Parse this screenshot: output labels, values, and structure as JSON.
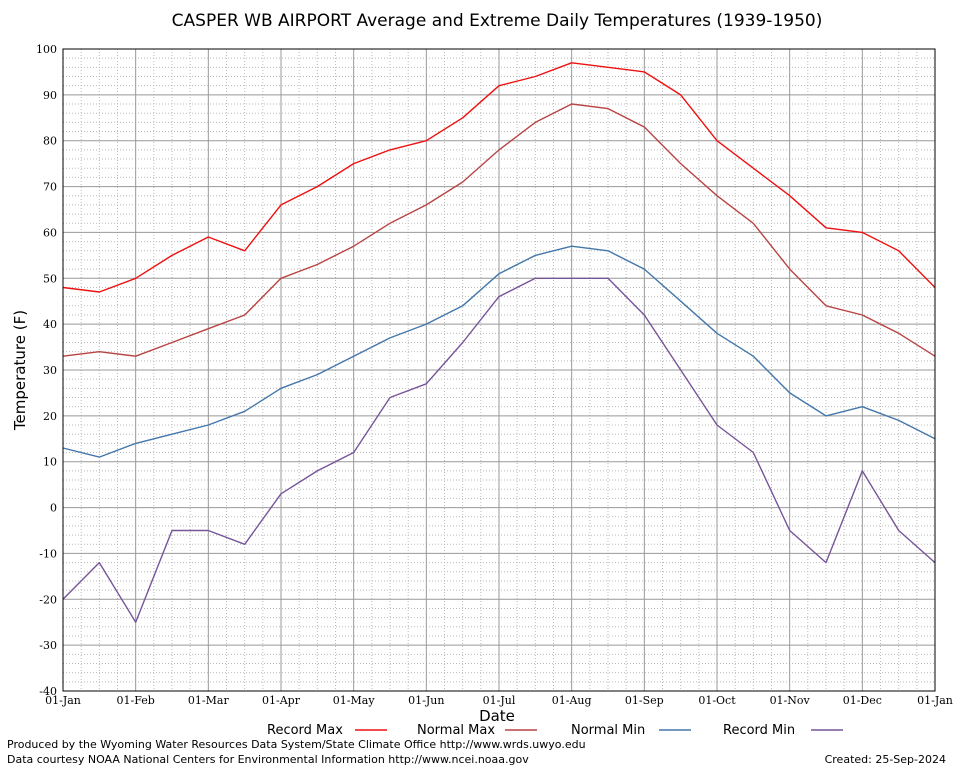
{
  "chart_data": {
    "type": "line",
    "title": "CASPER WB AIRPORT Average and Extreme Daily Temperatures (1939-1950)",
    "xlabel": "Date",
    "ylabel": "Temperature (F)",
    "ylim": [
      -40,
      100
    ],
    "yticks": [
      100,
      90,
      80,
      70,
      60,
      50,
      40,
      30,
      20,
      10,
      0,
      -10,
      -20,
      -30,
      -40
    ],
    "xlim": [
      "01-Jan",
      "01-Jan"
    ],
    "xticks": [
      "01-Jan",
      "01-Feb",
      "01-Mar",
      "01-Apr",
      "01-May",
      "01-Jun",
      "01-Jul",
      "01-Aug",
      "01-Sep",
      "01-Oct",
      "01-Nov",
      "01-Dec",
      "01-Jan"
    ],
    "grid": true,
    "legend_position": "bottom",
    "x": [
      "01-Jan",
      "15-Jan",
      "01-Feb",
      "15-Feb",
      "01-Mar",
      "15-Mar",
      "01-Apr",
      "15-Apr",
      "01-May",
      "15-May",
      "01-Jun",
      "15-Jun",
      "01-Jul",
      "15-Jul",
      "01-Aug",
      "15-Aug",
      "01-Sep",
      "15-Sep",
      "01-Oct",
      "15-Oct",
      "01-Nov",
      "15-Nov",
      "01-Dec",
      "15-Dec",
      "31-Dec"
    ],
    "series": [
      {
        "name": "Record Max",
        "color": "#ee1111",
        "values": [
          48,
          47,
          50,
          55,
          59,
          56,
          66,
          70,
          75,
          78,
          80,
          85,
          92,
          94,
          97,
          96,
          95,
          90,
          80,
          74,
          68,
          61,
          60,
          56,
          48
        ]
      },
      {
        "name": "Normal Max",
        "color": "#b84444",
        "values": [
          33,
          34,
          33,
          36,
          39,
          42,
          50,
          53,
          57,
          62,
          66,
          71,
          78,
          84,
          88,
          87,
          83,
          75,
          68,
          62,
          52,
          44,
          42,
          38,
          33
        ]
      },
      {
        "name": "Normal Min",
        "color": "#4477aa",
        "values": [
          13,
          11,
          14,
          16,
          18,
          21,
          26,
          29,
          33,
          37,
          40,
          44,
          51,
          55,
          57,
          56,
          52,
          45,
          38,
          33,
          25,
          20,
          22,
          19,
          15
        ]
      },
      {
        "name": "Record Min",
        "color": "#775599",
        "values": [
          -20,
          -12,
          -25,
          -5,
          -5,
          -8,
          3,
          8,
          12,
          24,
          27,
          36,
          46,
          50,
          50,
          50,
          42,
          30,
          18,
          12,
          -5,
          -12,
          8,
          -5,
          -12
        ]
      }
    ]
  },
  "legend": {
    "items": [
      {
        "label": "Record Max",
        "color": "#ee1111"
      },
      {
        "label": "Normal Max",
        "color": "#b84444"
      },
      {
        "label": "Normal Min",
        "color": "#4477aa"
      },
      {
        "label": "Record Min",
        "color": "#775599"
      }
    ]
  },
  "footer": {
    "produced": "Produced by the Wyoming Water Resources Data System/State Climate Office http://www.wrds.uwyo.edu",
    "courtesy": "Data courtesy NOAA National Centers for Environmental Information http://www.ncei.noaa.gov",
    "created": "Created: 25-Sep-2024"
  }
}
